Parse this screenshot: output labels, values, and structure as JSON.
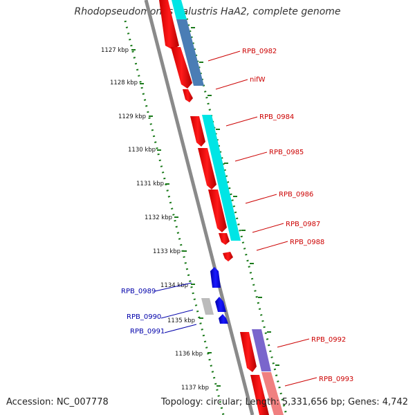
{
  "title": "Rhodopseudomonas palustris HaA2, complete genome",
  "footer": {
    "accession": "Accession: NC_007778",
    "summary": "Topology: circular; Length: 5,331,656 bp; Genes: 4,742"
  },
  "colors": {
    "forward_cds": "#ff0000",
    "reverse_cds": "#0000ee",
    "gene_label_right": "#cc0000",
    "gene_label_left": "#0000aa",
    "ruler": "#1a7a1a",
    "backbone": "#888888",
    "rna_cyan": "#00e5e5",
    "rna_steelblue": "#4a7db5",
    "rna_purple": "#7a66cc",
    "rna_pink": "#f08080",
    "rna_grey": "#bbbbbb"
  },
  "kbp_ticks": [
    "1127 kbp",
    "1128 kbp",
    "1129 kbp",
    "1130 kbp",
    "1131 kbp",
    "1132 kbp",
    "1133 kbp",
    "1134 kbp",
    "1135 kbp",
    "1136 kbp",
    "1137 kbp"
  ],
  "gene_labels_right": [
    "RPB_0982",
    "nifW",
    "RPB_0984",
    "RPB_0985",
    "RPB_0986",
    "RPB_0987",
    "RPB_0988",
    "RPB_0992",
    "RPB_0993"
  ],
  "gene_labels_left": [
    "RPB_0989",
    "RPB_0990",
    "RPB_0991"
  ]
}
